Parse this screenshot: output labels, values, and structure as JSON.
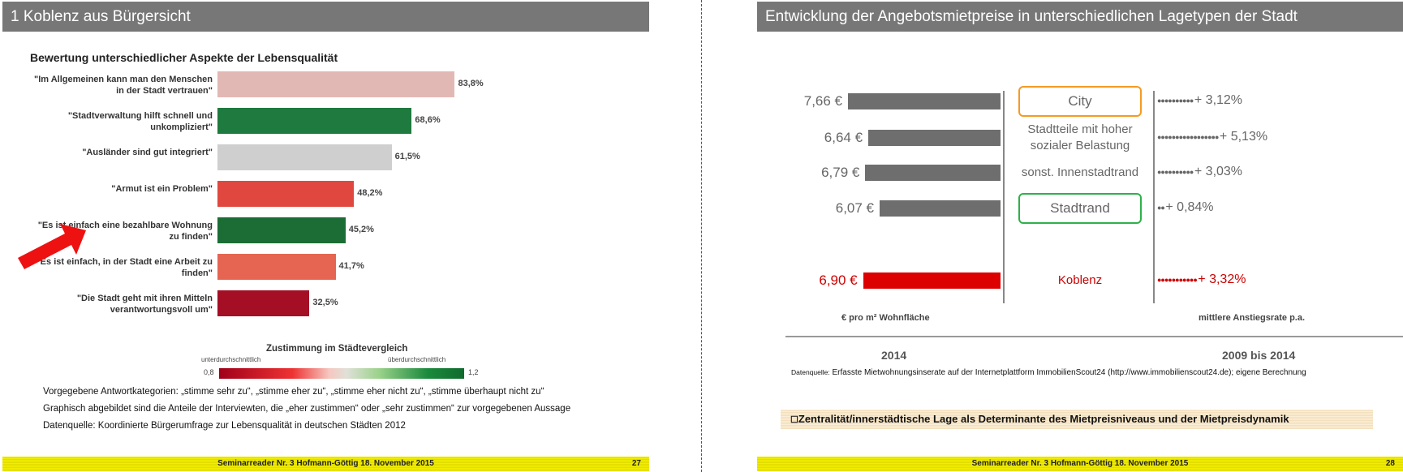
{
  "left": {
    "header": "1 Koblenz aus Bürgersicht",
    "chart_title": "Bewertung unterschiedlicher Aspekte der Lebensqualität",
    "chart_data": {
      "type": "bar",
      "categories": [
        "\"Im Allgemeinen kann man den Menschen in der Stadt vertrauen\"",
        "\"Stadtverwaltung hilft schnell und unkompliziert\"",
        "\"Ausländer sind gut integriert\"",
        "\"Armut ist ein Problem\"",
        "\"Es ist einfach eine bezahlbare Wohnung zu finden\"",
        "\"Es ist einfach, in der Stadt eine Arbeit zu finden\"",
        "\"Die Stadt geht mit ihren Mitteln verantwortungsvoll um\""
      ],
      "values": [
        83.8,
        68.6,
        61.5,
        48.2,
        45.2,
        41.7,
        32.5
      ],
      "value_labels": [
        "83,8%",
        "68,6%",
        "61,5%",
        "48,2%",
        "45,2%",
        "41,7%",
        "32,5%"
      ],
      "colors": [
        "#e2b8b5",
        "#1e7a3e",
        "#cfcfcf",
        "#e0483f",
        "#1b6d35",
        "#e66552",
        "#a50f25"
      ],
      "xlim": [
        0,
        100
      ]
    },
    "legend": {
      "title": "Zustimmung im Städtevergleich",
      "low_label": "unterdurchschnittlich",
      "high_label": "überdurchschnittlich",
      "min": "0,8",
      "max": "1,2"
    },
    "notes": [
      "Vorgegebene Antwortkategorien:  „stimme sehr zu“, „stimme eher zu“, „stimme eher nicht zu“, „stimme überhaupt nicht zu“",
      "Graphisch abgebildet sind die Anteile der Interviewten, die „eher zustimmen“ oder „sehr zustimmen“ zur vorgegebenen Aussage",
      "Datenquelle: Koordinierte Bürgerumfrage zur Lebensqualität in deutschen Städten 2012"
    ],
    "footer": "Seminarreader Nr. 3 Hofmann-Göttig 18. November 2015",
    "page": "27"
  },
  "right": {
    "header": "Entwicklung der Angebotsmietpreise in unterschiedlichen Lagetypen der Stadt",
    "rows": [
      {
        "price": "7,66 €",
        "value": 7.66,
        "type": "City",
        "rate": "+ 3,12%",
        "dots": 10,
        "color": "#666666",
        "boxed": true,
        "box_color": "#f59a23"
      },
      {
        "price": "6,64 €",
        "value": 6.64,
        "type": "Stadtteile mit hoher sozialer Belastung",
        "rate": "+ 5,13%",
        "dots": 17,
        "color": "#666666",
        "boxed": false
      },
      {
        "price": "6,79 €",
        "value": 6.79,
        "type": "sonst. Innenstadtrand",
        "rate": "+ 3,03%",
        "dots": 10,
        "color": "#666666",
        "boxed": false
      },
      {
        "price": "6,07 €",
        "value": 6.07,
        "type": "Stadtrand",
        "rate": "+ 0,84%",
        "dots": 2,
        "color": "#666666",
        "boxed": true,
        "box_color": "#2fb04a"
      },
      {
        "price": "6,90 €",
        "value": 6.9,
        "type": "Koblenz",
        "rate": "+ 3,32%",
        "dots": 11,
        "color": "#cc0000",
        "boxed": false
      }
    ],
    "axis_left": "€ pro m² Wohnfläche",
    "axis_right": "mittlere Anstiegsrate p.a.",
    "year_left": "2014",
    "year_right": "2009 bis 2014",
    "source_label": "Datenquelle:",
    "source": "Erfasste Mietwohnungsinserate auf der Internetplattform ImmobilienScout24 (http://www.immobilienscout24.de); eigene Berechnung",
    "conclusion": "Zentralität/innerstädtische Lage als Determinante des Mietpreisniveaus und der Mietpreisdynamik",
    "footer": "Seminarreader Nr. 3 Hofmann-Göttig 18. November 2015",
    "page": "28"
  }
}
